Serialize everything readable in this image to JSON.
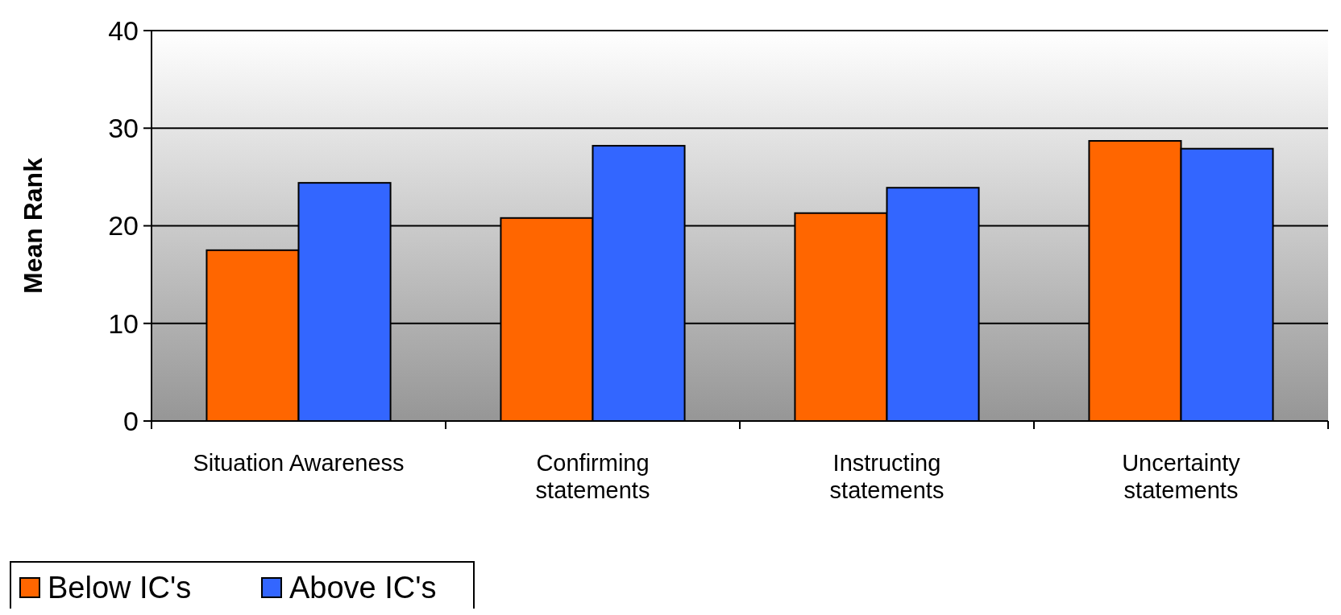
{
  "chart_data": {
    "type": "bar",
    "ylabel": "Mean Rank",
    "categories": [
      "Situation Awareness",
      "Confirming statements",
      "Instructing statements",
      "Uncertainty statements"
    ],
    "series": [
      {
        "name": "Below IC's",
        "color": "#ff6600",
        "values": [
          17.5,
          20.8,
          21.3,
          28.7
        ]
      },
      {
        "name": "Above IC's",
        "color": "#3366ff",
        "values": [
          24.4,
          28.2,
          23.9,
          27.9
        ]
      }
    ],
    "ylim": [
      0,
      40
    ],
    "yticks": [
      0,
      10,
      20,
      30,
      40
    ],
    "grid": "y",
    "legend": "bottom left"
  }
}
